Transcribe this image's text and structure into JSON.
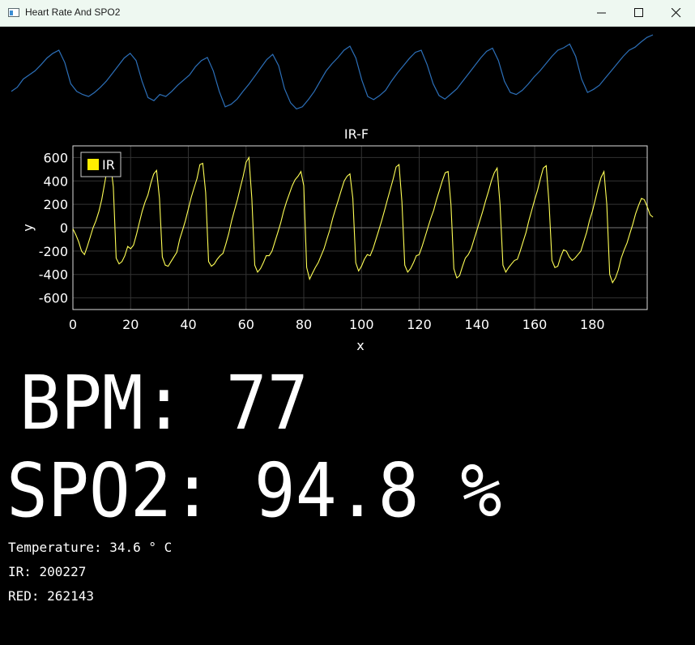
{
  "window": {
    "title": "Heart Rate And SPO2"
  },
  "icons": {
    "app": "app-window-icon",
    "minimize": "minimize-icon",
    "maximize": "maximize-icon",
    "close": "close-icon"
  },
  "colors": {
    "raw_trace": "#2c6fb8",
    "ir_trace": "#ffff55",
    "legend_swatch": "#ffee00",
    "grid": "#333333"
  },
  "raw_plot": {
    "values": [
      -0.1,
      -0.02,
      0.14,
      0.22,
      0.3,
      0.42,
      0.55,
      0.64,
      0.7,
      0.46,
      0.05,
      -0.1,
      -0.16,
      -0.2,
      -0.12,
      -0.02,
      0.1,
      0.25,
      0.4,
      0.55,
      0.64,
      0.5,
      0.1,
      -0.22,
      -0.28,
      -0.16,
      -0.2,
      -0.1,
      0.02,
      0.12,
      0.22,
      0.38,
      0.5,
      0.56,
      0.3,
      -0.1,
      -0.4,
      -0.35,
      -0.25,
      -0.1,
      0.04,
      0.2,
      0.36,
      0.52,
      0.62,
      0.4,
      -0.05,
      -0.32,
      -0.44,
      -0.4,
      -0.26,
      -0.1,
      0.1,
      0.3,
      0.44,
      0.56,
      0.7,
      0.78,
      0.55,
      0.12,
      -0.2,
      -0.26,
      -0.18,
      -0.08,
      0.1,
      0.26,
      0.4,
      0.54,
      0.66,
      0.7,
      0.42,
      0.05,
      -0.18,
      -0.25,
      -0.15,
      -0.05,
      0.1,
      0.25,
      0.4,
      0.55,
      0.68,
      0.74,
      0.5,
      0.1,
      -0.12,
      -0.16,
      -0.08,
      0.04,
      0.18,
      0.3,
      0.44,
      0.58,
      0.7,
      0.75,
      0.82,
      0.58,
      0.14,
      -0.12,
      -0.06,
      0.02,
      0.16,
      0.3,
      0.44,
      0.58,
      0.7,
      0.76,
      0.86,
      0.95,
      1.0
    ]
  },
  "chart_data": {
    "type": "line",
    "title": "IR-F",
    "xlabel": "x",
    "ylabel": "y",
    "xlim": [
      0,
      199
    ],
    "ylim": [
      -700,
      700
    ],
    "x_ticks": [
      0,
      20,
      40,
      60,
      80,
      100,
      120,
      140,
      160,
      180
    ],
    "y_ticks": [
      600,
      400,
      200,
      0,
      -200,
      -400,
      -600
    ],
    "grid": true,
    "legend": "top-left",
    "series": [
      {
        "name": "IR",
        "values": [
          -10,
          -60,
          -120,
          -200,
          -230,
          -160,
          -80,
          0,
          60,
          140,
          240,
          380,
          520,
          560,
          350,
          -260,
          -310,
          -290,
          -240,
          -160,
          -180,
          -150,
          -60,
          40,
          140,
          220,
          280,
          380,
          460,
          490,
          250,
          -250,
          -320,
          -330,
          -290,
          -250,
          -210,
          -100,
          -20,
          60,
          160,
          260,
          340,
          420,
          540,
          550,
          300,
          -290,
          -330,
          -310,
          -270,
          -240,
          -220,
          -140,
          -50,
          60,
          150,
          240,
          340,
          440,
          560,
          600,
          250,
          -320,
          -380,
          -350,
          -300,
          -240,
          -240,
          -200,
          -120,
          -40,
          40,
          140,
          220,
          290,
          360,
          410,
          440,
          480,
          360,
          -340,
          -440,
          -390,
          -340,
          -300,
          -240,
          -180,
          -100,
          -20,
          80,
          160,
          240,
          320,
          400,
          440,
          460,
          250,
          -300,
          -370,
          -330,
          -270,
          -230,
          -240,
          -180,
          -100,
          -20,
          60,
          150,
          240,
          330,
          420,
          520,
          540,
          220,
          -320,
          -380,
          -350,
          -300,
          -240,
          -230,
          -160,
          -80,
          0,
          80,
          150,
          240,
          320,
          400,
          470,
          480,
          200,
          -350,
          -430,
          -410,
          -330,
          -260,
          -230,
          -180,
          -100,
          -20,
          60,
          140,
          230,
          310,
          400,
          470,
          510,
          200,
          -320,
          -380,
          -340,
          -310,
          -280,
          -270,
          -200,
          -120,
          -40,
          60,
          150,
          240,
          320,
          420,
          510,
          530,
          200,
          -280,
          -340,
          -330,
          -250,
          -190,
          -200,
          -250,
          -280,
          -260,
          -230,
          -200,
          -120,
          -40,
          60,
          140,
          240,
          340,
          430,
          480,
          200,
          -400,
          -470,
          -430,
          -360,
          -260,
          -190,
          -130,
          -50,
          30,
          120,
          190,
          250,
          240,
          180,
          110,
          90
        ]
      }
    ]
  },
  "readouts": {
    "bpm": "BPM: 77",
    "spo2": "SPO2: 94.8 %",
    "temperature": "Temperature: 34.6 ° C",
    "ir": "IR: 200227",
    "red": "RED: 262143"
  }
}
